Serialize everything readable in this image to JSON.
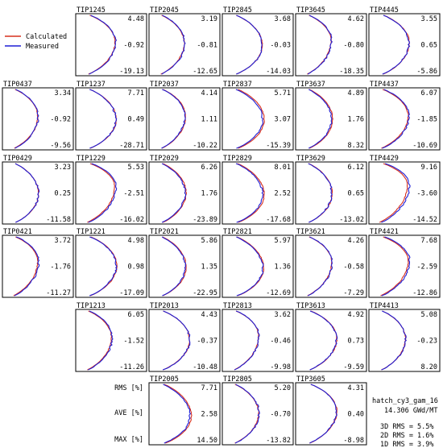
{
  "legend": {
    "calculated_label": "Calculated",
    "measured_label": "Measured",
    "calculated_color": "#d7301f",
    "measured_color": "#1f1fd6"
  },
  "stats_labels": {
    "rms": "RMS [%]",
    "ave": "AVE [%]",
    "max": "MAX [%]"
  },
  "info": {
    "case": "hatch_cy3_gam_16",
    "burnup": "14.306 GWd/MT",
    "rms_3d": "3D RMS =  5.5%",
    "rms_2d": "2D RMS =  1.6%",
    "rms_1d": "1D RMS =  3.9%"
  },
  "chart_data": {
    "type": "line",
    "description_type": "small-multiple axial profiles",
    "series": [
      {
        "name": "Calculated",
        "color": "#d7301f"
      },
      {
        "name": "Measured",
        "color": "#1f1fd6"
      }
    ],
    "stat_order": [
      "RMS",
      "AVE",
      "MAX"
    ],
    "panels": [
      {
        "id": "TIP1245",
        "row": 0,
        "col": 1,
        "rms": "4.48",
        "ave": "-0.92",
        "max": "-19.13"
      },
      {
        "id": "TIP2045",
        "row": 0,
        "col": 2,
        "rms": "3.19",
        "ave": "-0.81",
        "max": "-12.65"
      },
      {
        "id": "TIP2845",
        "row": 0,
        "col": 3,
        "rms": "3.68",
        "ave": "-0.03",
        "max": "-14.03"
      },
      {
        "id": "TIP3645",
        "row": 0,
        "col": 4,
        "rms": "4.62",
        "ave": "-0.80",
        "max": "-18.35"
      },
      {
        "id": "TIP4445",
        "row": 0,
        "col": 5,
        "rms": "3.55",
        "ave": "0.65",
        "max": "-5.86"
      },
      {
        "id": "TIP0437",
        "row": 1,
        "col": 0,
        "rms": "3.34",
        "ave": "-0.92",
        "max": "-9.56"
      },
      {
        "id": "TIP1237",
        "row": 1,
        "col": 1,
        "rms": "7.71",
        "ave": "0.49",
        "max": "-28.71"
      },
      {
        "id": "TIP2037",
        "row": 1,
        "col": 2,
        "rms": "4.14",
        "ave": "1.11",
        "max": "-10.22"
      },
      {
        "id": "TIP2837",
        "row": 1,
        "col": 3,
        "rms": "5.71",
        "ave": "3.07",
        "max": "-15.39"
      },
      {
        "id": "TIP3637",
        "row": 1,
        "col": 4,
        "rms": "4.89",
        "ave": "1.76",
        "max": "8.32"
      },
      {
        "id": "TIP4437",
        "row": 1,
        "col": 5,
        "rms": "6.07",
        "ave": "-1.85",
        "max": "-10.69"
      },
      {
        "id": "TIP0429",
        "row": 2,
        "col": 0,
        "rms": "3.23",
        "ave": "0.25",
        "max": "-11.58"
      },
      {
        "id": "TIP1229",
        "row": 2,
        "col": 1,
        "rms": "5.53",
        "ave": "-2.51",
        "max": "-16.02"
      },
      {
        "id": "TIP2029",
        "row": 2,
        "col": 2,
        "rms": "6.26",
        "ave": "1.76",
        "max": "-23.89"
      },
      {
        "id": "TIP2829",
        "row": 2,
        "col": 3,
        "rms": "8.01",
        "ave": "2.52",
        "max": "-17.68"
      },
      {
        "id": "TIP3629",
        "row": 2,
        "col": 4,
        "rms": "6.12",
        "ave": "0.65",
        "max": "-13.02"
      },
      {
        "id": "TIP4429",
        "row": 2,
        "col": 5,
        "rms": "9.16",
        "ave": "-3.60",
        "max": "-14.52"
      },
      {
        "id": "TIP0421",
        "row": 3,
        "col": 0,
        "rms": "3.72",
        "ave": "-1.76",
        "max": "-11.27"
      },
      {
        "id": "TIP1221",
        "row": 3,
        "col": 1,
        "rms": "4.98",
        "ave": "0.98",
        "max": "-17.09"
      },
      {
        "id": "TIP2021",
        "row": 3,
        "col": 2,
        "rms": "5.86",
        "ave": "1.35",
        "max": "-22.95"
      },
      {
        "id": "TIP2821",
        "row": 3,
        "col": 3,
        "rms": "5.97",
        "ave": "1.36",
        "max": "-12.69"
      },
      {
        "id": "TIP3621",
        "row": 3,
        "col": 4,
        "rms": "4.26",
        "ave": "-0.58",
        "max": "-7.29"
      },
      {
        "id": "TIP4421",
        "row": 3,
        "col": 5,
        "rms": "7.68",
        "ave": "-2.59",
        "max": "-12.86"
      },
      {
        "id": "TIP1213",
        "row": 4,
        "col": 1,
        "rms": "6.05",
        "ave": "-1.52",
        "max": "-11.26"
      },
      {
        "id": "TIP2013",
        "row": 4,
        "col": 2,
        "rms": "4.43",
        "ave": "-0.37",
        "max": "-10.48"
      },
      {
        "id": "TIP2813",
        "row": 4,
        "col": 3,
        "rms": "3.62",
        "ave": "-0.46",
        "max": "-9.98"
      },
      {
        "id": "TIP3613",
        "row": 4,
        "col": 4,
        "rms": "4.92",
        "ave": "0.73",
        "max": "-9.59"
      },
      {
        "id": "TIP4413",
        "row": 4,
        "col": 5,
        "rms": "5.08",
        "ave": "-0.23",
        "max": "8.20"
      },
      {
        "id": "TIP2005",
        "row": 5,
        "col": 2,
        "rms": "7.71",
        "ave": "2.58",
        "max": "14.50"
      },
      {
        "id": "TIP2805",
        "row": 5,
        "col": 3,
        "rms": "5.20",
        "ave": "-0.70",
        "max": "-13.82"
      },
      {
        "id": "TIP3605",
        "row": 5,
        "col": 4,
        "rms": "4.31",
        "ave": "0.40",
        "max": "-8.98"
      }
    ]
  }
}
